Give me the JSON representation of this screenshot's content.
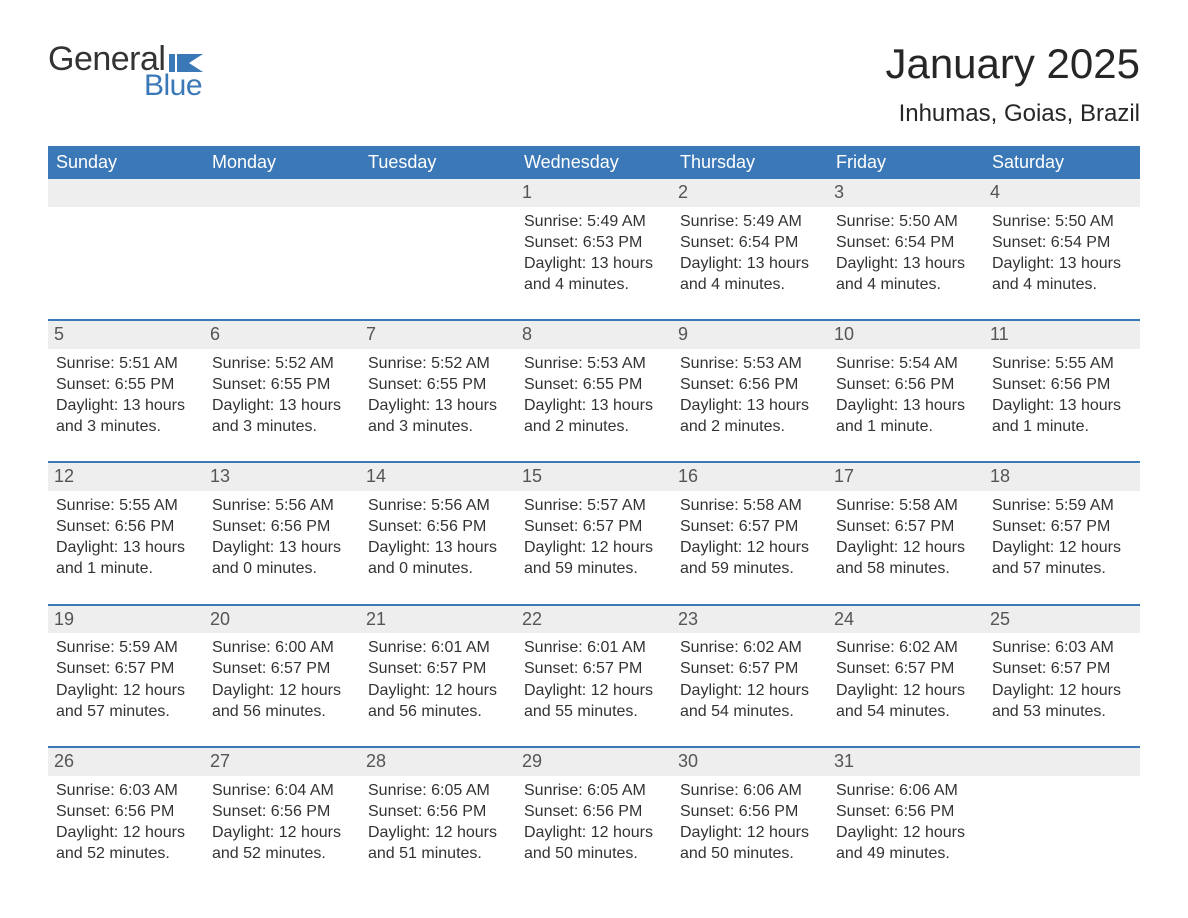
{
  "branding": {
    "word1": "General",
    "word2": "Blue",
    "text_color": "#333333",
    "accent_color": "#3b78b8"
  },
  "header": {
    "title": "January 2025",
    "location": "Inhumas, Goias, Brazil",
    "title_fontsize": 42,
    "location_fontsize": 24
  },
  "style": {
    "header_bg": "#3b78b8",
    "header_fg": "#ffffff",
    "daynum_bg": "#eeeeee",
    "daynum_fg": "#555555",
    "row_border": "#3b78b8",
    "body_bg": "#ffffff",
    "text_color": "#333333",
    "cell_fontsize": 16,
    "header_fontsize": 18
  },
  "days_of_week": [
    "Sunday",
    "Monday",
    "Tuesday",
    "Wednesday",
    "Thursday",
    "Friday",
    "Saturday"
  ],
  "weeks": [
    [
      {
        "day": "",
        "sunrise": "",
        "sunset": "",
        "daylight": ""
      },
      {
        "day": "",
        "sunrise": "",
        "sunset": "",
        "daylight": ""
      },
      {
        "day": "",
        "sunrise": "",
        "sunset": "",
        "daylight": ""
      },
      {
        "day": "1",
        "sunrise": "Sunrise: 5:49 AM",
        "sunset": "Sunset: 6:53 PM",
        "daylight": "Daylight: 13 hours and 4 minutes."
      },
      {
        "day": "2",
        "sunrise": "Sunrise: 5:49 AM",
        "sunset": "Sunset: 6:54 PM",
        "daylight": "Daylight: 13 hours and 4 minutes."
      },
      {
        "day": "3",
        "sunrise": "Sunrise: 5:50 AM",
        "sunset": "Sunset: 6:54 PM",
        "daylight": "Daylight: 13 hours and 4 minutes."
      },
      {
        "day": "4",
        "sunrise": "Sunrise: 5:50 AM",
        "sunset": "Sunset: 6:54 PM",
        "daylight": "Daylight: 13 hours and 4 minutes."
      }
    ],
    [
      {
        "day": "5",
        "sunrise": "Sunrise: 5:51 AM",
        "sunset": "Sunset: 6:55 PM",
        "daylight": "Daylight: 13 hours and 3 minutes."
      },
      {
        "day": "6",
        "sunrise": "Sunrise: 5:52 AM",
        "sunset": "Sunset: 6:55 PM",
        "daylight": "Daylight: 13 hours and 3 minutes."
      },
      {
        "day": "7",
        "sunrise": "Sunrise: 5:52 AM",
        "sunset": "Sunset: 6:55 PM",
        "daylight": "Daylight: 13 hours and 3 minutes."
      },
      {
        "day": "8",
        "sunrise": "Sunrise: 5:53 AM",
        "sunset": "Sunset: 6:55 PM",
        "daylight": "Daylight: 13 hours and 2 minutes."
      },
      {
        "day": "9",
        "sunrise": "Sunrise: 5:53 AM",
        "sunset": "Sunset: 6:56 PM",
        "daylight": "Daylight: 13 hours and 2 minutes."
      },
      {
        "day": "10",
        "sunrise": "Sunrise: 5:54 AM",
        "sunset": "Sunset: 6:56 PM",
        "daylight": "Daylight: 13 hours and 1 minute."
      },
      {
        "day": "11",
        "sunrise": "Sunrise: 5:55 AM",
        "sunset": "Sunset: 6:56 PM",
        "daylight": "Daylight: 13 hours and 1 minute."
      }
    ],
    [
      {
        "day": "12",
        "sunrise": "Sunrise: 5:55 AM",
        "sunset": "Sunset: 6:56 PM",
        "daylight": "Daylight: 13 hours and 1 minute."
      },
      {
        "day": "13",
        "sunrise": "Sunrise: 5:56 AM",
        "sunset": "Sunset: 6:56 PM",
        "daylight": "Daylight: 13 hours and 0 minutes."
      },
      {
        "day": "14",
        "sunrise": "Sunrise: 5:56 AM",
        "sunset": "Sunset: 6:56 PM",
        "daylight": "Daylight: 13 hours and 0 minutes."
      },
      {
        "day": "15",
        "sunrise": "Sunrise: 5:57 AM",
        "sunset": "Sunset: 6:57 PM",
        "daylight": "Daylight: 12 hours and 59 minutes."
      },
      {
        "day": "16",
        "sunrise": "Sunrise: 5:58 AM",
        "sunset": "Sunset: 6:57 PM",
        "daylight": "Daylight: 12 hours and 59 minutes."
      },
      {
        "day": "17",
        "sunrise": "Sunrise: 5:58 AM",
        "sunset": "Sunset: 6:57 PM",
        "daylight": "Daylight: 12 hours and 58 minutes."
      },
      {
        "day": "18",
        "sunrise": "Sunrise: 5:59 AM",
        "sunset": "Sunset: 6:57 PM",
        "daylight": "Daylight: 12 hours and 57 minutes."
      }
    ],
    [
      {
        "day": "19",
        "sunrise": "Sunrise: 5:59 AM",
        "sunset": "Sunset: 6:57 PM",
        "daylight": "Daylight: 12 hours and 57 minutes."
      },
      {
        "day": "20",
        "sunrise": "Sunrise: 6:00 AM",
        "sunset": "Sunset: 6:57 PM",
        "daylight": "Daylight: 12 hours and 56 minutes."
      },
      {
        "day": "21",
        "sunrise": "Sunrise: 6:01 AM",
        "sunset": "Sunset: 6:57 PM",
        "daylight": "Daylight: 12 hours and 56 minutes."
      },
      {
        "day": "22",
        "sunrise": "Sunrise: 6:01 AM",
        "sunset": "Sunset: 6:57 PM",
        "daylight": "Daylight: 12 hours and 55 minutes."
      },
      {
        "day": "23",
        "sunrise": "Sunrise: 6:02 AM",
        "sunset": "Sunset: 6:57 PM",
        "daylight": "Daylight: 12 hours and 54 minutes."
      },
      {
        "day": "24",
        "sunrise": "Sunrise: 6:02 AM",
        "sunset": "Sunset: 6:57 PM",
        "daylight": "Daylight: 12 hours and 54 minutes."
      },
      {
        "day": "25",
        "sunrise": "Sunrise: 6:03 AM",
        "sunset": "Sunset: 6:57 PM",
        "daylight": "Daylight: 12 hours and 53 minutes."
      }
    ],
    [
      {
        "day": "26",
        "sunrise": "Sunrise: 6:03 AM",
        "sunset": "Sunset: 6:56 PM",
        "daylight": "Daylight: 12 hours and 52 minutes."
      },
      {
        "day": "27",
        "sunrise": "Sunrise: 6:04 AM",
        "sunset": "Sunset: 6:56 PM",
        "daylight": "Daylight: 12 hours and 52 minutes."
      },
      {
        "day": "28",
        "sunrise": "Sunrise: 6:05 AM",
        "sunset": "Sunset: 6:56 PM",
        "daylight": "Daylight: 12 hours and 51 minutes."
      },
      {
        "day": "29",
        "sunrise": "Sunrise: 6:05 AM",
        "sunset": "Sunset: 6:56 PM",
        "daylight": "Daylight: 12 hours and 50 minutes."
      },
      {
        "day": "30",
        "sunrise": "Sunrise: 6:06 AM",
        "sunset": "Sunset: 6:56 PM",
        "daylight": "Daylight: 12 hours and 50 minutes."
      },
      {
        "day": "31",
        "sunrise": "Sunrise: 6:06 AM",
        "sunset": "Sunset: 6:56 PM",
        "daylight": "Daylight: 12 hours and 49 minutes."
      },
      {
        "day": "",
        "sunrise": "",
        "sunset": "",
        "daylight": ""
      }
    ]
  ]
}
